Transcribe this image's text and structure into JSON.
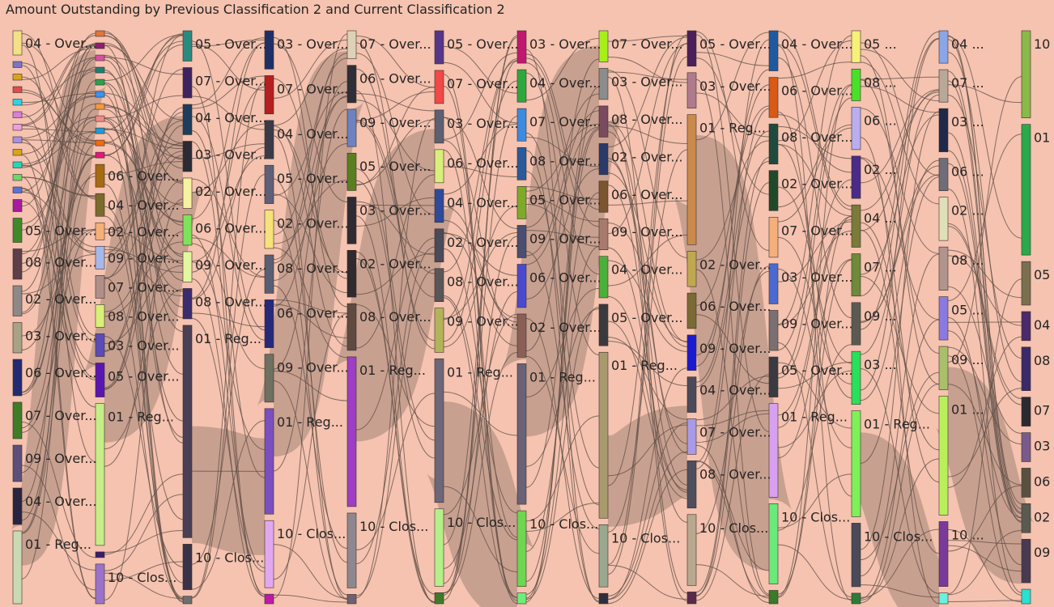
{
  "title": "Amount Outstanding by Previous Classification 2 and Current Classification 2",
  "link_color": "#5f4e45",
  "chart_data": {
    "type": "sankey",
    "columns": [
      [
        {
          "label": "04 - Over...",
          "color": "#f3e087",
          "size": 4
        },
        {
          "label": "",
          "color": "#7a74c9",
          "size": 1
        },
        {
          "label": "",
          "color": "#d7a617",
          "size": 1
        },
        {
          "label": "",
          "color": "#e14b4b",
          "size": 1
        },
        {
          "label": "",
          "color": "#2fd3e4",
          "size": 1
        },
        {
          "label": "",
          "color": "#d97fd5",
          "size": 1
        },
        {
          "label": "",
          "color": "#f09de0",
          "size": 1
        },
        {
          "label": "",
          "color": "#a88fe8",
          "size": 1
        },
        {
          "label": "",
          "color": "#d9a31c",
          "size": 1
        },
        {
          "label": "",
          "color": "#25d6ba",
          "size": 1
        },
        {
          "label": "",
          "color": "#6fd66a",
          "size": 1
        },
        {
          "label": "",
          "color": "#5a72d6",
          "size": 1
        },
        {
          "label": "",
          "color": "#a81aa0",
          "size": 2
        },
        {
          "label": "05 - Over...",
          "color": "#3e8a2a",
          "size": 4
        },
        {
          "label": "08 - Over...",
          "color": "#5e3e48",
          "size": 5
        },
        {
          "label": "02 - Over...",
          "color": "#8e8887",
          "size": 5
        },
        {
          "label": "03 - Over...",
          "color": "#a8a386",
          "size": 5
        },
        {
          "label": "06 - Over...",
          "color": "#232a72",
          "size": 6
        },
        {
          "label": "07 - Over...",
          "color": "#3f7c26",
          "size": 6
        },
        {
          "label": "09 - Over...",
          "color": "#5e4f7a",
          "size": 6
        },
        {
          "label": "04 - Over...",
          "color": "#2a2440",
          "size": 6
        },
        {
          "label": "01 - Reg...",
          "color": "#c9d9b4",
          "size": 12
        }
      ],
      [
        {
          "label": "",
          "color": "#e0763e",
          "size": 1
        },
        {
          "label": "",
          "color": "#8f1f6e",
          "size": 1
        },
        {
          "label": "",
          "color": "#d94fa8",
          "size": 1
        },
        {
          "label": "",
          "color": "#1e7f6f",
          "size": 1
        },
        {
          "label": "",
          "color": "#2ba04e",
          "size": 1
        },
        {
          "label": "",
          "color": "#3b93f0",
          "size": 1
        },
        {
          "label": "",
          "color": "#f29a43",
          "size": 1
        },
        {
          "label": "",
          "color": "#f28a8a",
          "size": 1
        },
        {
          "label": "",
          "color": "#1a9bd7",
          "size": 1
        },
        {
          "label": "",
          "color": "#f26a10",
          "size": 1
        },
        {
          "label": "",
          "color": "#e6167a",
          "size": 1
        },
        {
          "label": "06 - Over...",
          "color": "#a56a14",
          "size": 4
        },
        {
          "label": "04 - Over...",
          "color": "#7a6b2a",
          "size": 4
        },
        {
          "label": "02 - Over...",
          "color": "#f5b07a",
          "size": 3
        },
        {
          "label": "09 - Over...",
          "color": "#a7b8e8",
          "size": 4
        },
        {
          "label": "07 - Over...",
          "color": "#b08f8a",
          "size": 4
        },
        {
          "label": "08 - Over...",
          "color": "#d8f07a",
          "size": 4
        },
        {
          "label": "03 - Over...",
          "color": "#5b4bb8",
          "size": 4
        },
        {
          "label": "05 - Over...",
          "color": "#5a15b0",
          "size": 6
        },
        {
          "label": "01 - Reg...",
          "color": "#c6ed87",
          "size": 25
        },
        {
          "label": "",
          "color": "#3a1d6a",
          "size": 1
        },
        {
          "label": "10 - Clos...",
          "color": "#9b72c9",
          "size": 7
        }
      ],
      [
        {
          "label": "05 - Over...",
          "color": "#2a8a80",
          "size": 4
        },
        {
          "label": "07 - Over...",
          "color": "#3d2460",
          "size": 4
        },
        {
          "label": "04 - Over...",
          "color": "#1e3d5c",
          "size": 4
        },
        {
          "label": "03 - Over...",
          "color": "#2b2b35",
          "size": 4
        },
        {
          "label": "02 - Over...",
          "color": "#f6f2a0",
          "size": 4
        },
        {
          "label": "06 - Over...",
          "color": "#7ee35a",
          "size": 4
        },
        {
          "label": "09 - Over...",
          "color": "#e3f6a0",
          "size": 4
        },
        {
          "label": "08 - Over...",
          "color": "#3b2c6e",
          "size": 4
        },
        {
          "label": "01 - Reg...",
          "color": "#4a3f55",
          "size": 28
        },
        {
          "label": "10 - Clos...",
          "color": "#3a3348",
          "size": 6
        },
        {
          "label": "",
          "color": "#6e6e6e",
          "size": 1
        }
      ],
      [
        {
          "label": "03 - Over...",
          "color": "#1f2f66",
          "size": 4
        },
        {
          "label": "07 - Over...",
          "color": "#b51f1f",
          "size": 4
        },
        {
          "label": "04 - Over...",
          "color": "#3b3b48",
          "size": 4
        },
        {
          "label": "05 - Over...",
          "color": "#5f6078",
          "size": 4
        },
        {
          "label": "02 - Over...",
          "color": "#f6e27a",
          "size": 4
        },
        {
          "label": "08 - Over...",
          "color": "#5a5e75",
          "size": 4
        },
        {
          "label": "06 - Over...",
          "color": "#26287a",
          "size": 5
        },
        {
          "label": "09 - Over...",
          "color": "#6e7061",
          "size": 5
        },
        {
          "label": "01 - Reg...",
          "color": "#7b4fc0",
          "size": 11
        },
        {
          "label": "10 - Clos...",
          "color": "#e2a8ef",
          "size": 7
        },
        {
          "label": "",
          "color": "#c018a8",
          "size": 1
        }
      ],
      [
        {
          "label": "07 - Over...",
          "color": "#ddd2b8",
          "size": 3
        },
        {
          "label": "06 - Over...",
          "color": "#2e2e38",
          "size": 4
        },
        {
          "label": "09 - Over...",
          "color": "#6d82c0",
          "size": 4
        },
        {
          "label": "05 - Over...",
          "color": "#5a7f20",
          "size": 4
        },
        {
          "label": "03 - Over...",
          "color": "#2e2b33",
          "size": 5
        },
        {
          "label": "02 - Over...",
          "color": "#2f2a2e",
          "size": 5
        },
        {
          "label": "08 - Over...",
          "color": "#5e4a40",
          "size": 5
        },
        {
          "label": "01 - Reg...",
          "color": "#9e3ec4",
          "size": 16
        },
        {
          "label": "10 - Clos...",
          "color": "#8e8790",
          "size": 8
        },
        {
          "label": "",
          "color": "#6e6070",
          "size": 1
        }
      ],
      [
        {
          "label": "05 - Over...",
          "color": "#56368a",
          "size": 3
        },
        {
          "label": "07 - Over...",
          "color": "#f24848",
          "size": 3
        },
        {
          "label": "03 - Over...",
          "color": "#5e6072",
          "size": 3
        },
        {
          "label": "06 - Over...",
          "color": "#d8f07a",
          "size": 3
        },
        {
          "label": "04 - Over...",
          "color": "#2f4a9a",
          "size": 3
        },
        {
          "label": "02 - Over...",
          "color": "#4a4a58",
          "size": 3
        },
        {
          "label": "08 - Over...",
          "color": "#5a5658",
          "size": 3
        },
        {
          "label": "09 - Over...",
          "color": "#b3b45a",
          "size": 4
        },
        {
          "label": "01 - Reg...",
          "color": "#6e6679",
          "size": 13
        },
        {
          "label": "10 - Clos...",
          "color": "#b5ef8a",
          "size": 7
        },
        {
          "label": "",
          "color": "#3e7a2a",
          "size": 1
        }
      ],
      [
        {
          "label": "03 - Over...",
          "color": "#c01870",
          "size": 3
        },
        {
          "label": "04 - Over...",
          "color": "#2ea83e",
          "size": 3
        },
        {
          "label": "07 - Over...",
          "color": "#3d8be0",
          "size": 3
        },
        {
          "label": "08 - Over...",
          "color": "#2a5a9a",
          "size": 3
        },
        {
          "label": "05 - Over...",
          "color": "#7eaa2a",
          "size": 3
        },
        {
          "label": "09 - Over...",
          "color": "#4a4e70",
          "size": 3
        },
        {
          "label": "06 - Over...",
          "color": "#4a4ad0",
          "size": 4
        },
        {
          "label": "02 - Over...",
          "color": "#8a6056",
          "size": 4
        },
        {
          "label": "01 - Reg...",
          "color": "#6a6276",
          "size": 13
        },
        {
          "label": "10 - Clos...",
          "color": "#6ed650",
          "size": 7
        },
        {
          "label": "",
          "color": "#6af07a",
          "size": 1
        }
      ],
      [
        {
          "label": "07 - Over...",
          "color": "#a6ef1a",
          "size": 3
        },
        {
          "label": "03 - Over...",
          "color": "#8c8c8c",
          "size": 3
        },
        {
          "label": "08 - Over...",
          "color": "#7a4a5e",
          "size": 3
        },
        {
          "label": "02 - Over...",
          "color": "#2a3a6a",
          "size": 3
        },
        {
          "label": "06 - Over...",
          "color": "#7a5530",
          "size": 3
        },
        {
          "label": "09 - Over...",
          "color": "#a87a6e",
          "size": 3
        },
        {
          "label": "04 - Over...",
          "color": "#4ab03a",
          "size": 4
        },
        {
          "label": "05 - Over...",
          "color": "#3a3a3e",
          "size": 4
        },
        {
          "label": "01 - Reg...",
          "color": "#a89a6e",
          "size": 16
        },
        {
          "label": "10 - Clos...",
          "color": "#9aa890",
          "size": 6
        },
        {
          "label": "",
          "color": "#2e2e3e",
          "size": 1
        }
      ],
      [
        {
          "label": "05 - Over...",
          "color": "#4a1f5a",
          "size": 3
        },
        {
          "label": "03 - Over...",
          "color": "#b07a8e",
          "size": 3
        },
        {
          "label": "01 - Reg...",
          "color": "#c98a4a",
          "size": 11
        },
        {
          "label": "02 - Over...",
          "color": "#c0a850",
          "size": 3
        },
        {
          "label": "06 - Over...",
          "color": "#7a6a35",
          "size": 3
        },
        {
          "label": "09 - Over...",
          "color": "#1a1ad0",
          "size": 3
        },
        {
          "label": "04 - Over...",
          "color": "#4a4a5a",
          "size": 3
        },
        {
          "label": "07 - Over...",
          "color": "#a99ae8",
          "size": 3
        },
        {
          "label": "08 - Over...",
          "color": "#4e4e5e",
          "size": 4
        },
        {
          "label": "10 - Clos...",
          "color": "#b8a890",
          "size": 6
        },
        {
          "label": "",
          "color": "#5a2a4a",
          "size": 1
        }
      ],
      [
        {
          "label": "04 - Over...",
          "color": "#1f5aa0",
          "size": 3
        },
        {
          "label": "06 - Over...",
          "color": "#d85a15",
          "size": 3
        },
        {
          "label": "08 - Over...",
          "color": "#1f4a3e",
          "size": 3
        },
        {
          "label": "02 - Over...",
          "color": "#1f4a2a",
          "size": 3
        },
        {
          "label": "07 - Over...",
          "color": "#f5b07a",
          "size": 3
        },
        {
          "label": "03 - Over...",
          "color": "#4a6ad0",
          "size": 3
        },
        {
          "label": "09 - Over...",
          "color": "#7a7072",
          "size": 3
        },
        {
          "label": "05 - Over...",
          "color": "#3a3a42",
          "size": 3
        },
        {
          "label": "01 - Reg...",
          "color": "#d8a0f0",
          "size": 7
        },
        {
          "label": "10 - Clos...",
          "color": "#6aea7a",
          "size": 6
        },
        {
          "label": "",
          "color": "#3a7a2a",
          "size": 1
        }
      ],
      [
        {
          "label": "05 ...",
          "color": "#f7f07a",
          "size": 3
        },
        {
          "label": "08 ...",
          "color": "#4ae02a",
          "size": 3
        },
        {
          "label": "06 ...",
          "color": "#b8aef0",
          "size": 4
        },
        {
          "label": "02 ...",
          "color": "#4a2a8a",
          "size": 4
        },
        {
          "label": "04 ...",
          "color": "#7a7a3a",
          "size": 4
        },
        {
          "label": "07 ...",
          "color": "#6e8a3a",
          "size": 4
        },
        {
          "label": "09 ...",
          "color": "#5a5a52",
          "size": 4
        },
        {
          "label": "03 ...",
          "color": "#2adf5a",
          "size": 5
        },
        {
          "label": "01 - Reg...",
          "color": "#7ef05a",
          "size": 10
        },
        {
          "label": "10 - Clos...",
          "color": "#4a4a58",
          "size": 6
        },
        {
          "label": "",
          "color": "#2e7a3a",
          "size": 1
        }
      ],
      [
        {
          "label": "04 ...",
          "color": "#8aa6e8",
          "size": 3
        },
        {
          "label": "07 ...",
          "color": "#b8a898",
          "size": 3
        },
        {
          "label": "03 ...",
          "color": "#1f2a4a",
          "size": 4
        },
        {
          "label": "06 ...",
          "color": "#6e6e7a",
          "size": 3
        },
        {
          "label": "02 ...",
          "color": "#e0e0b8",
          "size": 4
        },
        {
          "label": "08 ...",
          "color": "#b0948e",
          "size": 4
        },
        {
          "label": "05 ...",
          "color": "#8a7ae0",
          "size": 4
        },
        {
          "label": "09 ...",
          "color": "#a8c06a",
          "size": 4
        },
        {
          "label": "01 ...",
          "color": "#b8f05a",
          "size": 11
        },
        {
          "label": "10 ...",
          "color": "#7a3a9a",
          "size": 6
        },
        {
          "label": "",
          "color": "#6af0e0",
          "size": 1
        }
      ],
      [
        {
          "label": "10 - Clos...",
          "color": "#8ab84a",
          "size": 6
        },
        {
          "label": "01 - Reg...",
          "color": "#2aaa4a",
          "size": 9
        },
        {
          "label": "05 - Over...",
          "color": "#7a7050",
          "size": 3
        },
        {
          "label": "04 - Over...",
          "color": "#4a2a6a",
          "size": 2
        },
        {
          "label": "08 - Over...",
          "color": "#3a2a6a",
          "size": 3
        },
        {
          "label": "07 - Over...",
          "color": "#2a2a30",
          "size": 2
        },
        {
          "label": "03 - Over...",
          "color": "#7a5a8a",
          "size": 2
        },
        {
          "label": "06 ...",
          "color": "#5a5040",
          "size": 2
        },
        {
          "label": "02 - Over...",
          "color": "#5a5a50",
          "size": 2
        },
        {
          "label": "09 ...",
          "color": "#4a3a50",
          "size": 3
        },
        {
          "label": "",
          "color": "#2ae0d0",
          "size": 1
        }
      ]
    ]
  }
}
